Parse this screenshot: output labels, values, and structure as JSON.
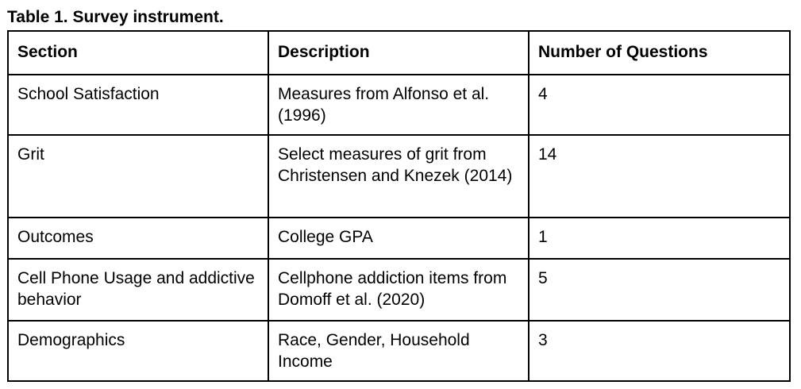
{
  "caption": "Table 1. Survey instrument.",
  "table": {
    "headers": [
      "Section",
      "Description",
      "Number of Questions"
    ],
    "rows": [
      [
        "School Satisfaction",
        "Measures from Alfonso et al. (1996)",
        "4"
      ],
      [
        "Grit",
        "Select measures of grit from Christensen and Knezek (2014)",
        "14"
      ],
      [
        "Outcomes",
        "College GPA",
        "1"
      ],
      [
        "Cell Phone Usage and addictive behavior",
        "Cellphone addiction items from Domoff et al. (2020)",
        "5"
      ],
      [
        "Demographics",
        "Race, Gender, Household Income",
        "3"
      ]
    ]
  }
}
